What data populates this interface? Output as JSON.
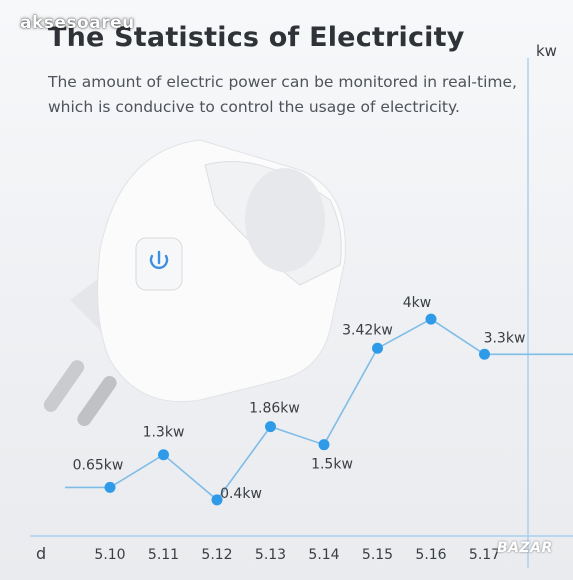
{
  "watermark": "aksesoareu",
  "header": {
    "title": "The Statistics of Electricity",
    "subtitle_line1": "The amount of electric power can be monitored in real-time,",
    "subtitle_line2": "which is conducive to control the usage of electricity."
  },
  "brand_badge": "BAZAR",
  "colors": {
    "accent": "#2f9be8",
    "line": "#7fbde8",
    "text": "#3a3d42",
    "power_icon": "#3d8fe0"
  },
  "icons": [
    "power-icon"
  ],
  "chart_data": {
    "type": "line",
    "title": "",
    "xlabel": "d",
    "ylabel": "kw",
    "unit": "kw",
    "categories": [
      "5.10",
      "5.11",
      "5.12",
      "5.13",
      "5.14",
      "5.15",
      "5.16",
      "5.17"
    ],
    "values": [
      0.65,
      1.3,
      0.4,
      1.86,
      1.5,
      3.42,
      4,
      3.3
    ],
    "point_labels": [
      "0.65kw",
      "1.3kw",
      "0.4kw",
      "1.86kw",
      "1.5kw",
      "3.42kw",
      "4kw",
      "3.3kw"
    ],
    "ylim": [
      0,
      4.6
    ],
    "grid": false,
    "legend": "none"
  }
}
